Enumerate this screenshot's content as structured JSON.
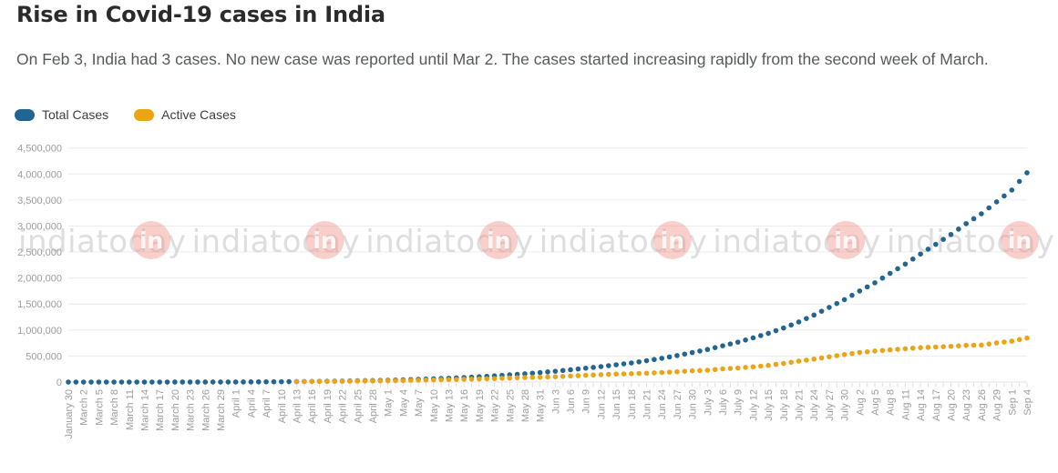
{
  "header": {
    "title": "Rise in Covid-19 cases in India",
    "subtitle": "On Feb 3, India had 3 cases. No new case was reported until Mar 2. The cases started increasing rapidly from the second week of March."
  },
  "legend": {
    "items": [
      {
        "label": "Total Cases",
        "color": "#226590"
      },
      {
        "label": "Active Cases",
        "color": "#ECA417"
      }
    ]
  },
  "watermark": {
    "text": "indiatoday",
    "badge": "in",
    "count": 6,
    "text_color": "#c9c9c9",
    "badge_color": "#f2948e",
    "badge_text_color": "#ffffff"
  },
  "chart_data": {
    "type": "line",
    "marker": "dot",
    "grid": true,
    "legend_position": "top-left",
    "xlabel": "",
    "ylabel": "",
    "ylim": [
      0,
      4500000
    ],
    "yticks": [
      0,
      500000,
      1000000,
      1500000,
      2000000,
      2500000,
      3000000,
      3500000,
      4000000,
      4500000
    ],
    "ytick_labels": [
      "0",
      "500,000",
      "1,000,000",
      "1,500,000",
      "2,000,000",
      "2,500,000",
      "3,000,000",
      "3,500,000",
      "4,000,000",
      "4,500,000"
    ],
    "categories": [
      "January 30",
      "March 2",
      "March 5",
      "March 8",
      "March 11",
      "March 14",
      "March 17",
      "March 20",
      "March 23",
      "March 26",
      "March 29",
      "April 1",
      "April 4",
      "April 7",
      "April 10",
      "April 13",
      "April 16",
      "April 19",
      "April 22",
      "April 25",
      "April 28",
      "May 1",
      "May 4",
      "May 7",
      "May 10",
      "May 13",
      "May 16",
      "May 19",
      "May 22",
      "May 25",
      "May 28",
      "May 31",
      "Jun 3",
      "Jun 6",
      "Jun 9",
      "Jun 12",
      "Jun 15",
      "Jun 18",
      "Jun 21",
      "Jun 24",
      "Jun 27",
      "Jun 30",
      "July 3",
      "July 6",
      "July 9",
      "July 12",
      "July 15",
      "July 18",
      "July 21",
      "July 24",
      "July 27",
      "July 30",
      "Aug 2",
      "Aug 5",
      "Aug 8",
      "Aug 11",
      "Aug 14",
      "Aug 17",
      "Aug 20",
      "Aug 23",
      "Aug 26",
      "Aug 29",
      "Sep 1",
      "Sep 4"
    ],
    "series": [
      {
        "name": "Total Cases",
        "color": "#226590",
        "values": [
          1,
          5,
          30,
          39,
          62,
          102,
          137,
          223,
          415,
          649,
          979,
          1834,
          2902,
          4421,
          6412,
          9352,
          12370,
          15722,
          19984,
          24447,
          29435,
          35043,
          42533,
          52952,
          62939,
          74281,
          85940,
          101139,
          118447,
          138845,
          158333,
          182143,
          207615,
          236657,
          266598,
          297535,
          332424,
          366946,
          410461,
          456183,
          508953,
          566840,
          625544,
          697413,
          767296,
          849522,
          936181,
          1038716,
          1155191,
          1287945,
          1435453,
          1583792,
          1750723,
          1908254,
          2088611,
          2268675,
          2461190,
          2647663,
          2836925,
          3044940,
          3234474,
          3463972,
          3691166,
          4023179
        ]
      },
      {
        "name": "Active Cases",
        "color": "#ECA417",
        "values": [
          null,
          null,
          null,
          null,
          null,
          null,
          null,
          null,
          null,
          null,
          null,
          null,
          null,
          null,
          null,
          7987,
          10477,
          12974,
          15859,
          18693,
          21632,
          25007,
          29453,
          35902,
          41472,
          47457,
          53035,
          58671,
          66330,
          77103,
          86110,
          93322,
          101497,
          115942,
          129917,
          141842,
          153178,
          160384,
          169451,
          183022,
          197387,
          215125,
          227439,
          253287,
          269789,
          292258,
          319840,
          358692,
          402529,
          441298,
          485114,
          528242,
          567730,
          595501,
          619088,
          639929,
          661595,
          673166,
          686395,
          705570,
          710771,
          752424,
          785996,
          846395
        ]
      }
    ]
  }
}
